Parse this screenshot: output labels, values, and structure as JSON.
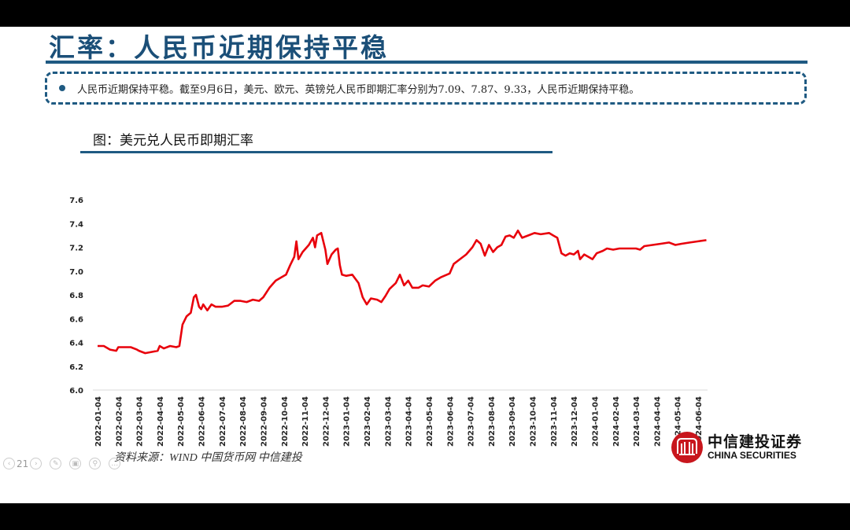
{
  "slide": {
    "title": "汇率：人民币近期保持平稳",
    "summary": {
      "bullet_text": "人民币近期保持平稳。截至9月6日，美元、欧元、英镑兑人民币即期汇率分别为7.09、7.87、9.33，人民币近期保持平稳。"
    },
    "figure_title": "图：美元兑人民币即期汇率",
    "source": "资料来源：WIND   中国货币网   中信建投",
    "page_number": "21",
    "logo": {
      "cn": "中信建投证券",
      "en": "CHINA SECURITIES",
      "color": "#c8161d"
    }
  },
  "colors": {
    "title": "#1b4f78",
    "accent_rule": "#1f5a82",
    "series": "#e8000b"
  },
  "chart_data": {
    "type": "line",
    "title": "图：美元兑人民币即期汇率",
    "xlabel": "",
    "ylabel": "",
    "ylim": [
      6.0,
      7.6
    ],
    "yticks": [
      "6.0",
      "6.2",
      "6.4",
      "6.6",
      "6.8",
      "7.0",
      "7.2",
      "7.4",
      "7.6"
    ],
    "grid": false,
    "legend": "none",
    "categories": [
      "2022-01-04",
      "2022-02-04",
      "2022-03-04",
      "2022-04-04",
      "2022-05-04",
      "2022-06-04",
      "2022-07-04",
      "2022-08-04",
      "2022-09-04",
      "2022-10-04",
      "2022-11-04",
      "2022-12-04",
      "2023-01-04",
      "2023-02-04",
      "2023-03-04",
      "2023-04-04",
      "2023-05-04",
      "2023-06-04",
      "2023-07-04",
      "2023-08-04",
      "2023-09-04",
      "2023-10-04",
      "2023-11-04",
      "2023-12-04",
      "2024-01-04",
      "2024-02-04",
      "2024-03-04",
      "2024-04-04",
      "2024-05-04",
      "2024-06-04"
    ],
    "series": [
      {
        "name": "美元兑人民币即期汇率",
        "points": [
          [
            0,
            6.37
          ],
          [
            0.3,
            6.37
          ],
          [
            0.6,
            6.34
          ],
          [
            0.9,
            6.33
          ],
          [
            1.0,
            6.36
          ],
          [
            1.3,
            6.36
          ],
          [
            1.6,
            6.36
          ],
          [
            1.9,
            6.34
          ],
          [
            2.0,
            6.33
          ],
          [
            2.3,
            6.31
          ],
          [
            2.6,
            6.32
          ],
          [
            2.9,
            6.33
          ],
          [
            3.0,
            6.37
          ],
          [
            3.2,
            6.35
          ],
          [
            3.5,
            6.37
          ],
          [
            3.8,
            6.36
          ],
          [
            3.95,
            6.37
          ],
          [
            4.1,
            6.55
          ],
          [
            4.3,
            6.62
          ],
          [
            4.5,
            6.65
          ],
          [
            4.65,
            6.78
          ],
          [
            4.75,
            6.8
          ],
          [
            4.9,
            6.7
          ],
          [
            5.0,
            6.68
          ],
          [
            5.1,
            6.72
          ],
          [
            5.3,
            6.67
          ],
          [
            5.5,
            6.72
          ],
          [
            5.7,
            6.7
          ],
          [
            6.0,
            6.7
          ],
          [
            6.3,
            6.71
          ],
          [
            6.6,
            6.75
          ],
          [
            6.9,
            6.75
          ],
          [
            7.2,
            6.74
          ],
          [
            7.5,
            6.76
          ],
          [
            7.8,
            6.75
          ],
          [
            8.0,
            6.78
          ],
          [
            8.3,
            6.86
          ],
          [
            8.6,
            6.92
          ],
          [
            8.9,
            6.95
          ],
          [
            9.1,
            6.97
          ],
          [
            9.3,
            7.05
          ],
          [
            9.5,
            7.12
          ],
          [
            9.6,
            7.25
          ],
          [
            9.7,
            7.1
          ],
          [
            9.9,
            7.16
          ],
          [
            10.2,
            7.22
          ],
          [
            10.4,
            7.28
          ],
          [
            10.5,
            7.2
          ],
          [
            10.6,
            7.3
          ],
          [
            10.8,
            7.32
          ],
          [
            10.9,
            7.25
          ],
          [
            11.0,
            7.18
          ],
          [
            11.1,
            7.06
          ],
          [
            11.3,
            7.14
          ],
          [
            11.5,
            7.18
          ],
          [
            11.6,
            7.19
          ],
          [
            11.7,
            7.05
          ],
          [
            11.8,
            6.97
          ],
          [
            12.0,
            6.96
          ],
          [
            12.3,
            6.97
          ],
          [
            12.6,
            6.9
          ],
          [
            12.8,
            6.78
          ],
          [
            13.0,
            6.72
          ],
          [
            13.2,
            6.77
          ],
          [
            13.5,
            6.76
          ],
          [
            13.7,
            6.74
          ],
          [
            13.9,
            6.79
          ],
          [
            14.1,
            6.85
          ],
          [
            14.4,
            6.9
          ],
          [
            14.6,
            6.97
          ],
          [
            14.8,
            6.88
          ],
          [
            15.0,
            6.92
          ],
          [
            15.2,
            6.86
          ],
          [
            15.5,
            6.86
          ],
          [
            15.7,
            6.88
          ],
          [
            16.0,
            6.87
          ],
          [
            16.3,
            6.92
          ],
          [
            16.6,
            6.95
          ],
          [
            17.0,
            6.98
          ],
          [
            17.2,
            7.06
          ],
          [
            17.5,
            7.1
          ],
          [
            17.8,
            7.14
          ],
          [
            18.1,
            7.2
          ],
          [
            18.3,
            7.26
          ],
          [
            18.5,
            7.23
          ],
          [
            18.7,
            7.13
          ],
          [
            18.9,
            7.22
          ],
          [
            19.1,
            7.16
          ],
          [
            19.3,
            7.2
          ],
          [
            19.5,
            7.22
          ],
          [
            19.7,
            7.29
          ],
          [
            19.9,
            7.3
          ],
          [
            20.1,
            7.28
          ],
          [
            20.3,
            7.34
          ],
          [
            20.5,
            7.28
          ],
          [
            20.8,
            7.3
          ],
          [
            21.1,
            7.32
          ],
          [
            21.4,
            7.31
          ],
          [
            21.8,
            7.32
          ],
          [
            22.0,
            7.3
          ],
          [
            22.2,
            7.28
          ],
          [
            22.4,
            7.15
          ],
          [
            22.6,
            7.13
          ],
          [
            22.8,
            7.15
          ],
          [
            23.0,
            7.14
          ],
          [
            23.2,
            7.17
          ],
          [
            23.3,
            7.1
          ],
          [
            23.5,
            7.14
          ],
          [
            23.7,
            7.12
          ],
          [
            23.9,
            7.1
          ],
          [
            24.1,
            7.15
          ],
          [
            24.4,
            7.17
          ],
          [
            24.6,
            7.19
          ],
          [
            24.9,
            7.18
          ],
          [
            25.2,
            7.19
          ],
          [
            25.6,
            7.19
          ],
          [
            26.0,
            7.19
          ],
          [
            26.2,
            7.18
          ],
          [
            26.4,
            7.21
          ],
          [
            26.8,
            7.22
          ],
          [
            27.2,
            7.23
          ],
          [
            27.6,
            7.24
          ],
          [
            27.9,
            7.22
          ],
          [
            28.2,
            7.23
          ],
          [
            28.6,
            7.24
          ],
          [
            29.0,
            7.25
          ],
          [
            29.4,
            7.26
          ]
        ]
      }
    ],
    "annotations": []
  }
}
